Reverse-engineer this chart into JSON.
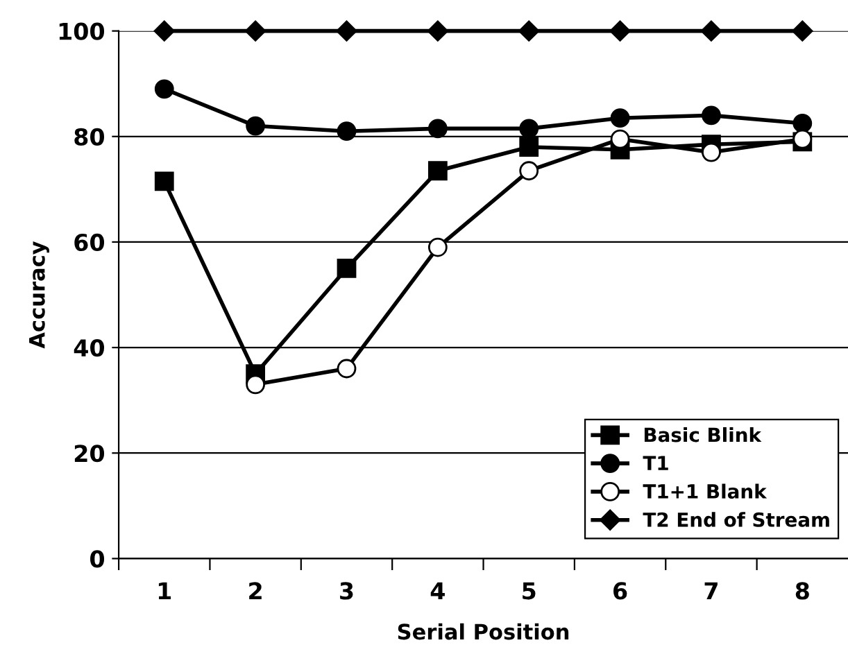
{
  "chart_data": {
    "type": "line",
    "xlabel": "Serial Position",
    "ylabel": "Accuracy",
    "categories": [
      "1",
      "2",
      "3",
      "4",
      "5",
      "6",
      "7",
      "8"
    ],
    "series": [
      {
        "name": "Basic Blink",
        "color": "#000000",
        "marker": "square",
        "values": [
          71.5,
          35,
          55,
          73.5,
          78,
          77.5,
          78.5,
          79
        ]
      },
      {
        "name": "T1",
        "color": "#000000",
        "marker": "circle",
        "values": [
          89,
          82,
          81,
          81.5,
          81.5,
          83.5,
          84,
          82.5
        ]
      },
      {
        "name": "T1+1 Blank",
        "color": "#000000",
        "marker": "circle",
        "values": [
          null,
          33,
          36,
          59,
          73.5,
          79.5,
          77,
          79.5
        ]
      },
      {
        "name": "T2 End of Stream",
        "color": "#000000",
        "marker": "diamond",
        "values": [
          100,
          100,
          100,
          100,
          100,
          100,
          100,
          100
        ]
      }
    ],
    "ylim": [
      0,
      100
    ],
    "yticks": [
      0,
      20,
      40,
      60,
      80,
      100
    ],
    "grid": "y",
    "legend": "bottom right",
    "line_style": "solid"
  }
}
